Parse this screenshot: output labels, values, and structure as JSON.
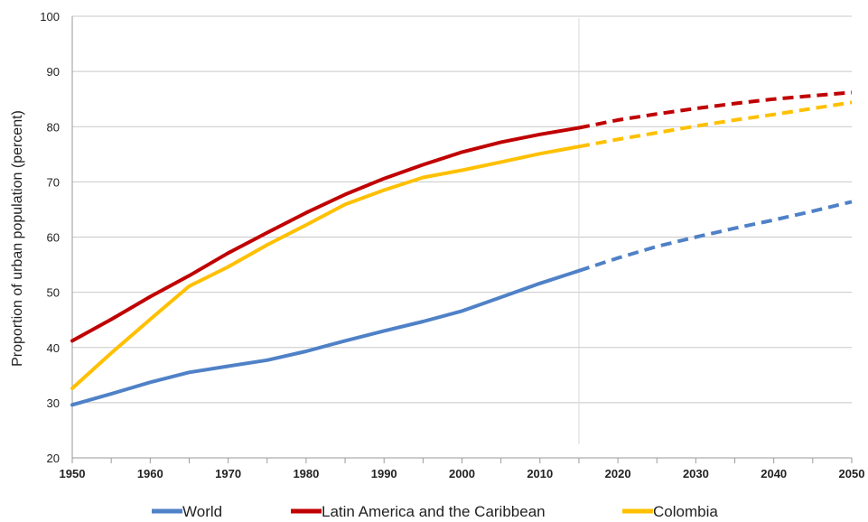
{
  "chart_data": {
    "type": "line",
    "title": "",
    "xlabel": "",
    "ylabel": "Proportion of urban population  (percent)",
    "xlim": [
      1950,
      2050
    ],
    "ylim": [
      20,
      100
    ],
    "x_ticks": [
      "1950",
      "1960",
      "1970",
      "1980",
      "1990",
      "2000",
      "2010",
      "2020",
      "2030",
      "2040",
      "2050"
    ],
    "y_ticks": [
      "20",
      "30",
      "40",
      "50",
      "60",
      "70",
      "80",
      "90",
      "100"
    ],
    "grid": "horizontal",
    "legend": "bottom",
    "projection_divider_x": 2015,
    "x": [
      1950,
      1955,
      1960,
      1965,
      1970,
      1975,
      1980,
      1985,
      1990,
      1995,
      2000,
      2005,
      2010,
      2015,
      2020,
      2025,
      2030,
      2035,
      2040,
      2045,
      2050
    ],
    "series": [
      {
        "name": "World",
        "color": "#4f81c7",
        "values": [
          29.6,
          31.6,
          33.7,
          35.5,
          36.6,
          37.7,
          39.3,
          41.2,
          43.0,
          44.7,
          46.6,
          49.1,
          51.6,
          53.9,
          56.2,
          58.3,
          60.0,
          61.6,
          63.1,
          64.7,
          66.4
        ]
      },
      {
        "name": "Latin America and the Caribbean",
        "color": "#c00000",
        "values": [
          41.2,
          45.1,
          49.2,
          53.0,
          57.1,
          60.8,
          64.4,
          67.7,
          70.6,
          73.1,
          75.4,
          77.2,
          78.6,
          79.8,
          81.2,
          82.3,
          83.3,
          84.2,
          85.0,
          85.6,
          86.2
        ]
      },
      {
        "name": "Colombia",
        "color": "#ffc000",
        "values": [
          32.6,
          39.0,
          45.1,
          51.1,
          54.6,
          58.6,
          62.2,
          65.9,
          68.5,
          70.8,
          72.1,
          73.6,
          75.1,
          76.4,
          77.7,
          78.9,
          80.1,
          81.2,
          82.2,
          83.3,
          84.4
        ]
      }
    ]
  }
}
